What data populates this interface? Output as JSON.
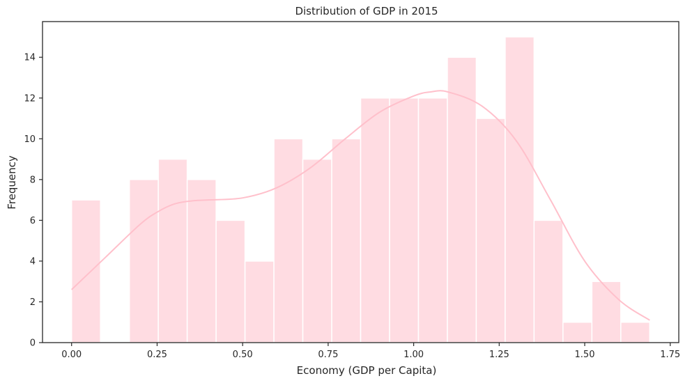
{
  "chart_data": {
    "type": "bar",
    "title": "Distribution of GDP in 2015",
    "xlabel": "Economy (GDP per Capita)",
    "ylabel": "Frequency",
    "xlim": [
      -0.085,
      1.775
    ],
    "ylim": [
      0,
      15.75
    ],
    "xticks": [
      "0.00",
      "0.25",
      "0.50",
      "0.75",
      "1.00",
      "1.25",
      "1.50",
      "1.75"
    ],
    "xtick_values": [
      0,
      0.25,
      0.5,
      0.75,
      1.0,
      1.25,
      1.5,
      1.75
    ],
    "yticks": [
      "0",
      "2",
      "4",
      "6",
      "8",
      "10",
      "12",
      "14"
    ],
    "ytick_values": [
      0,
      2,
      4,
      6,
      8,
      10,
      12,
      14
    ],
    "bin_start": 0.0,
    "bin_width": 0.0845,
    "counts": [
      7,
      0,
      8,
      9,
      8,
      6,
      4,
      10,
      9,
      10,
      12,
      12,
      12,
      14,
      11,
      15,
      6,
      1,
      3,
      1
    ],
    "kde_curve": {
      "x": [
        0,
        0.1,
        0.2,
        0.25,
        0.3,
        0.35,
        0.4,
        0.5,
        0.6,
        0.7,
        0.8,
        0.9,
        1.0,
        1.05,
        1.1,
        1.2,
        1.3,
        1.4,
        1.5,
        1.6,
        1.69
      ],
      "y": [
        2.6,
        4.2,
        5.8,
        6.4,
        6.8,
        6.95,
        7.0,
        7.1,
        7.6,
        8.6,
        10.0,
        11.3,
        12.1,
        12.3,
        12.3,
        11.6,
        9.9,
        7.0,
        4.0,
        2.1,
        1.1
      ]
    },
    "bar_color": "#ffc0cb",
    "kde_color": "#ffc0cb",
    "grid": false,
    "legend": "none"
  }
}
